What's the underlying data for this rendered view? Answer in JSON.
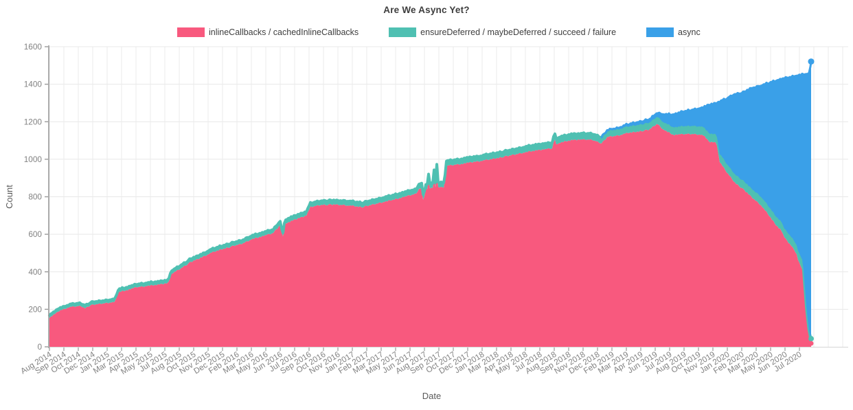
{
  "title": "Are We Async Yet?",
  "legend": {
    "position": "top",
    "items": [
      {
        "id": "inlinecallbacks",
        "label": "inlineCallbacks / cachedInlineCallbacks",
        "color": "#F8597E"
      },
      {
        "id": "ensuredeferred",
        "label": "ensureDeferred / maybeDeferred / succeed / failure",
        "color": "#4FC0B2"
      },
      {
        "id": "async",
        "label": "async",
        "color": "#3AA0E8"
      }
    ]
  },
  "axes": {
    "x": {
      "title": "Date",
      "tick_labels": [
        "Aug 2014",
        "Sep 2014",
        "Oct 2014",
        "Dec 2014",
        "Jan 2015",
        "Mar 2015",
        "Apr 2015",
        "May 2015",
        "Jul 2015",
        "Aug 2015",
        "Oct 2015",
        "Nov 2015",
        "Dec 2015",
        "Feb 2016",
        "Mar 2016",
        "May 2016",
        "Jun 2016",
        "Jul 2016",
        "Sep 2016",
        "Oct 2016",
        "Nov 2016",
        "Jan 2017",
        "Feb 2017",
        "Mar 2017",
        "May 2017",
        "Jun 2017",
        "Aug 2017",
        "Sep 2017",
        "Oct 2017",
        "Dec 2017",
        "Jan 2018",
        "Mar 2018",
        "Apr 2018",
        "May 2018",
        "Jul 2018",
        "Aug 2018",
        "Sep 2018",
        "Nov 2018",
        "Dec 2018",
        "Feb 2019",
        "Mar 2019",
        "Apr 2019",
        "Jun 2019",
        "Jul 2019",
        "Aug 2019",
        "Oct 2019",
        "Nov 2019",
        "Jan 2020",
        "Feb 2020",
        "Mar 2020",
        "May 2020",
        "Jun 2020",
        "Jul 2020"
      ]
    },
    "y": {
      "title": "Count",
      "ticks": [
        0,
        200,
        400,
        600,
        800,
        1000,
        1200,
        1400,
        1600
      ]
    }
  },
  "chart_data": {
    "type": "area",
    "stacked": true,
    "title": "Are We Async Yet?",
    "xlabel": "Date",
    "ylabel": "Count",
    "x_range": [
      "2014-08-03",
      "2020-08-29"
    ],
    "ylim": [
      0,
      1600
    ],
    "grid": true,
    "legend_position": "top",
    "x_tick_interval_days": 42,
    "series": [
      {
        "name": "inlineCallbacks / cachedInlineCallbacks",
        "color": "#F8597E",
        "points": [
          [
            "2014-08-03",
            155
          ],
          [
            "2014-09-01",
            192
          ],
          [
            "2014-10-01",
            212
          ],
          [
            "2014-11-01",
            218
          ],
          [
            "2014-11-15",
            207
          ],
          [
            "2014-12-01",
            222
          ],
          [
            "2015-01-01",
            230
          ],
          [
            "2015-02-10",
            240
          ],
          [
            "2015-02-20",
            293
          ],
          [
            "2015-03-15",
            302
          ],
          [
            "2015-04-15",
            318
          ],
          [
            "2015-05-15",
            325
          ],
          [
            "2015-06-15",
            331
          ],
          [
            "2015-07-15",
            340
          ],
          [
            "2015-07-25",
            390
          ],
          [
            "2015-08-15",
            412
          ],
          [
            "2015-09-15",
            448
          ],
          [
            "2015-10-15",
            472
          ],
          [
            "2015-11-15",
            500
          ],
          [
            "2015-12-15",
            520
          ],
          [
            "2016-01-15",
            535
          ],
          [
            "2016-02-15",
            550
          ],
          [
            "2016-03-15",
            575
          ],
          [
            "2016-04-15",
            590
          ],
          [
            "2016-05-15",
            605
          ],
          [
            "2016-06-05",
            650
          ],
          [
            "2016-06-12",
            578
          ],
          [
            "2016-06-18",
            655
          ],
          [
            "2016-07-15",
            676
          ],
          [
            "2016-08-20",
            700
          ],
          [
            "2016-09-01",
            745
          ],
          [
            "2016-10-01",
            757
          ],
          [
            "2016-11-01",
            758
          ],
          [
            "2016-12-01",
            757
          ],
          [
            "2017-01-01",
            752
          ],
          [
            "2017-02-01",
            745
          ],
          [
            "2017-03-01",
            758
          ],
          [
            "2017-04-01",
            772
          ],
          [
            "2017-05-01",
            785
          ],
          [
            "2017-06-01",
            800
          ],
          [
            "2017-07-05",
            815
          ],
          [
            "2017-07-15",
            845
          ],
          [
            "2017-07-24",
            845
          ],
          [
            "2017-07-27",
            758
          ],
          [
            "2017-08-01",
            840
          ],
          [
            "2017-08-10",
            843
          ],
          [
            "2017-08-12",
            945
          ],
          [
            "2017-08-15",
            845
          ],
          [
            "2017-08-24",
            847
          ],
          [
            "2017-08-26",
            948
          ],
          [
            "2017-08-29",
            848
          ],
          [
            "2017-09-02",
            850
          ],
          [
            "2017-09-04",
            950
          ],
          [
            "2017-09-07",
            850
          ],
          [
            "2017-09-26",
            852
          ],
          [
            "2017-10-02",
            965
          ],
          [
            "2017-11-01",
            972
          ],
          [
            "2017-12-01",
            980
          ],
          [
            "2018-01-01",
            988
          ],
          [
            "2018-02-01",
            998
          ],
          [
            "2018-03-01",
            1008
          ],
          [
            "2018-04-01",
            1018
          ],
          [
            "2018-05-01",
            1030
          ],
          [
            "2018-06-01",
            1042
          ],
          [
            "2018-07-01",
            1050
          ],
          [
            "2018-08-08",
            1058
          ],
          [
            "2018-08-12",
            1123
          ],
          [
            "2018-08-16",
            1080
          ],
          [
            "2018-09-01",
            1090
          ],
          [
            "2018-10-01",
            1102
          ],
          [
            "2018-11-01",
            1105
          ],
          [
            "2018-12-01",
            1104
          ],
          [
            "2018-12-28",
            1085
          ],
          [
            "2019-01-15",
            1119
          ],
          [
            "2019-02-15",
            1127
          ],
          [
            "2019-03-15",
            1141
          ],
          [
            "2019-04-15",
            1149
          ],
          [
            "2019-05-15",
            1157
          ],
          [
            "2019-06-08",
            1190
          ],
          [
            "2019-06-25",
            1160
          ],
          [
            "2019-07-25",
            1130
          ],
          [
            "2019-08-15",
            1132
          ],
          [
            "2019-09-10",
            1135
          ],
          [
            "2019-10-06",
            1133
          ],
          [
            "2019-10-20",
            1128
          ],
          [
            "2019-11-06",
            1093
          ],
          [
            "2019-11-28",
            1088
          ],
          [
            "2019-12-06",
            988
          ],
          [
            "2019-12-26",
            934
          ],
          [
            "2020-01-19",
            878
          ],
          [
            "2020-02-12",
            842
          ],
          [
            "2020-03-09",
            798
          ],
          [
            "2020-04-04",
            757
          ],
          [
            "2020-04-28",
            702
          ],
          [
            "2020-05-18",
            652
          ],
          [
            "2020-06-03",
            622
          ],
          [
            "2020-06-13",
            580
          ],
          [
            "2020-07-01",
            542
          ],
          [
            "2020-07-17",
            500
          ],
          [
            "2020-07-23",
            458
          ],
          [
            "2020-08-02",
            420
          ],
          [
            "2020-08-06",
            384
          ],
          [
            "2020-08-16",
            150
          ],
          [
            "2020-08-24",
            40
          ],
          [
            "2020-08-29",
            18
          ]
        ]
      },
      {
        "name": "ensureDeferred / maybeDeferred / succeed / failure",
        "color": "#4FC0B2",
        "points": [
          [
            "2014-08-03",
            14
          ],
          [
            "2015-06-15",
            16
          ],
          [
            "2016-01-15",
            18
          ],
          [
            "2016-07-15",
            20
          ],
          [
            "2017-01-01",
            23
          ],
          [
            "2017-08-01",
            25
          ],
          [
            "2018-01-01",
            27
          ],
          [
            "2018-07-01",
            30
          ],
          [
            "2018-12-01",
            32
          ],
          [
            "2019-03-15",
            34
          ],
          [
            "2019-06-08",
            38
          ],
          [
            "2019-08-15",
            42
          ],
          [
            "2019-10-20",
            44
          ],
          [
            "2019-12-26",
            44
          ],
          [
            "2020-03-09",
            45
          ],
          [
            "2020-05-18",
            46
          ],
          [
            "2020-07-17",
            48
          ],
          [
            "2020-08-06",
            50
          ],
          [
            "2020-08-16",
            42
          ],
          [
            "2020-08-24",
            30
          ],
          [
            "2020-08-29",
            25
          ]
        ]
      },
      {
        "name": "async",
        "color": "#3AA0E8",
        "points": [
          [
            "2018-12-28",
            0
          ],
          [
            "2019-01-15",
            4
          ],
          [
            "2019-02-15",
            8
          ],
          [
            "2019-03-15",
            12
          ],
          [
            "2019-04-15",
            15
          ],
          [
            "2019-05-15",
            18
          ],
          [
            "2019-06-08",
            20
          ],
          [
            "2019-06-25",
            42
          ],
          [
            "2019-07-25",
            68
          ],
          [
            "2019-08-15",
            76
          ],
          [
            "2019-09-10",
            84
          ],
          [
            "2019-10-06",
            94
          ],
          [
            "2019-10-20",
            104
          ],
          [
            "2019-11-06",
            153
          ],
          [
            "2019-11-28",
            168
          ],
          [
            "2019-12-06",
            276
          ],
          [
            "2019-12-26",
            344
          ],
          [
            "2020-01-19",
            425
          ],
          [
            "2020-02-12",
            468
          ],
          [
            "2020-03-09",
            537
          ],
          [
            "2020-04-04",
            590
          ],
          [
            "2020-04-28",
            660
          ],
          [
            "2020-05-18",
            722
          ],
          [
            "2020-06-03",
            760
          ],
          [
            "2020-06-13",
            805
          ],
          [
            "2020-07-01",
            850
          ],
          [
            "2020-07-17",
            898
          ],
          [
            "2020-07-23",
            942
          ],
          [
            "2020-08-02",
            980
          ],
          [
            "2020-08-06",
            1020
          ],
          [
            "2020-08-16",
            1262
          ],
          [
            "2020-08-24",
            1390
          ],
          [
            "2020-08-29",
            1477
          ]
        ]
      }
    ]
  }
}
